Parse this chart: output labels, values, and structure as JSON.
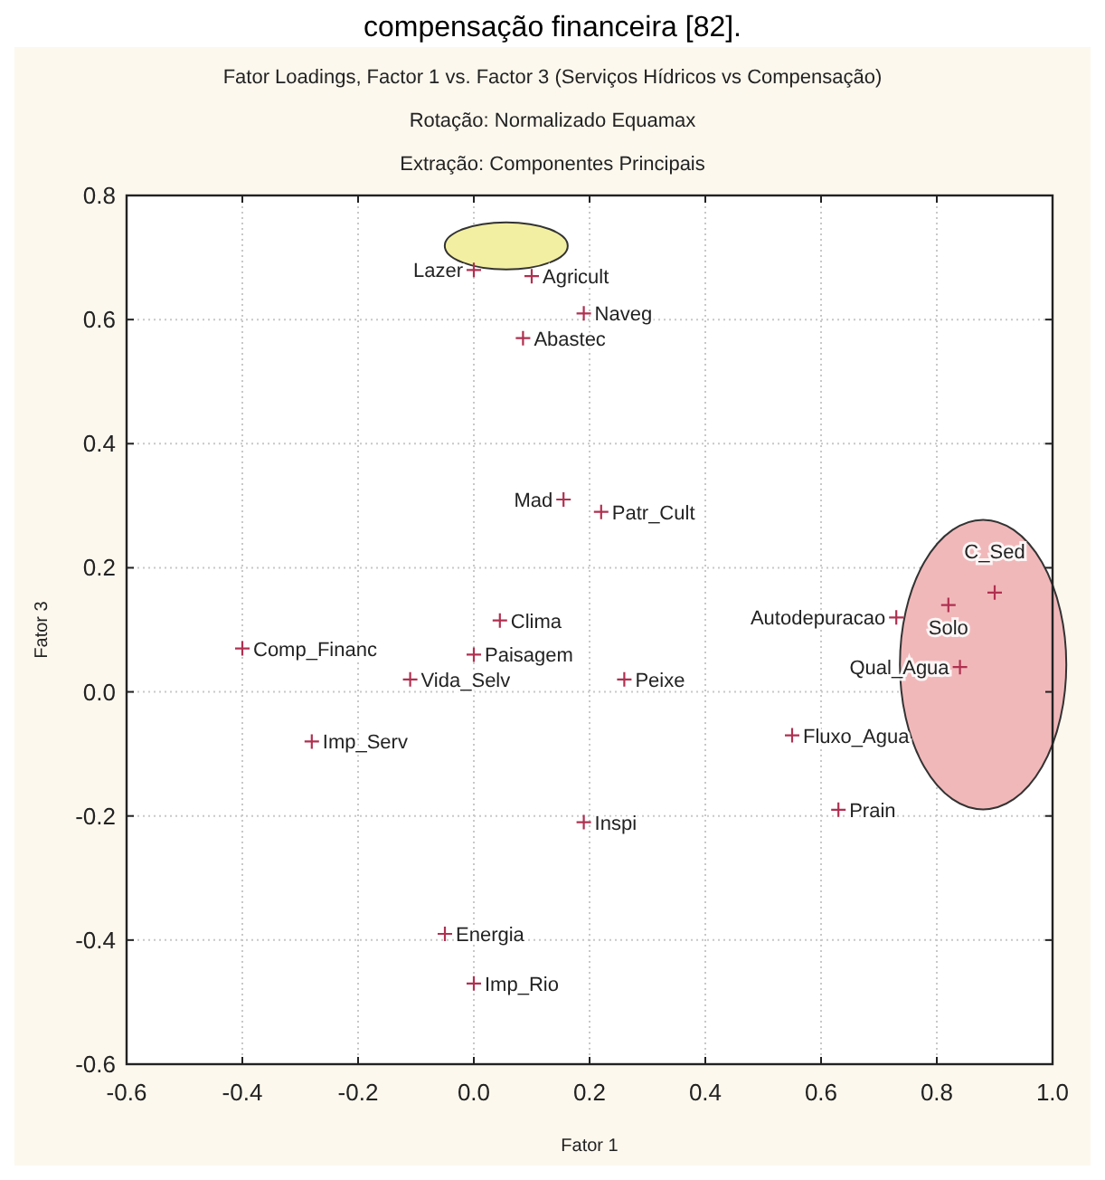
{
  "chart_data": {
    "type": "scatter",
    "title": "Fator Loadings, Factor 1 vs. Factor 3 (Serviços Hídricos vs Compensação)",
    "subtitle": "Rotação: Normalizado Equamax\nExtração: Componentes Principais",
    "xlabel": "Fator 1",
    "ylabel": "Fator 3",
    "xlim": [
      -0.6,
      1.0
    ],
    "ylim": [
      -0.6,
      0.8
    ],
    "xticks": [
      {
        "value": -0.6,
        "label": "-0.6"
      },
      {
        "value": -0.4,
        "label": "-0.4"
      },
      {
        "value": -0.2,
        "label": "-0.2"
      },
      {
        "value": 0,
        "label": "0.0"
      },
      {
        "value": 0.2,
        "label": "0.2"
      },
      {
        "value": 0.4,
        "label": "0.4"
      },
      {
        "value": 0.6,
        "label": "0.6"
      },
      {
        "value": 0.8,
        "label": "0.8"
      },
      {
        "value": 1.0,
        "label": "1.0"
      }
    ],
    "yticks": [
      {
        "value": -0.6,
        "label": "-0.6"
      },
      {
        "value": -0.4,
        "label": "-0.4"
      },
      {
        "value": -0.2,
        "label": "-0.2"
      },
      {
        "value": 0,
        "label": "0.0"
      },
      {
        "value": 0.2,
        "label": "0.2"
      },
      {
        "value": 0.4,
        "label": "0.4"
      },
      {
        "value": 0.6,
        "label": "0.6"
      },
      {
        "value": 0.8,
        "label": "0.8"
      }
    ],
    "grid": true,
    "marker": "cross",
    "series": [
      {
        "color": "#b03050",
        "x": [
          0.0,
          0.1,
          0.19,
          0.085,
          0.155,
          0.22,
          0.045,
          0.0,
          -0.11,
          -0.4,
          -0.28,
          0.26,
          0.19,
          -0.05,
          0.0,
          0.55,
          0.63,
          0.73,
          0.82,
          0.9,
          0.84
        ],
        "values": [
          0.68,
          0.67,
          0.61,
          0.57,
          0.31,
          0.29,
          0.115,
          0.06,
          0.02,
          0.07,
          -0.08,
          0.02,
          -0.21,
          -0.39,
          -0.47,
          -0.07,
          -0.19,
          0.12,
          0.14,
          0.16,
          0.04
        ]
      }
    ],
    "annotations": [
      "compensação financeira [82].",
      {
        "text": "Lazer",
        "x": 0.0,
        "y": 0.68
      },
      {
        "text": "Agricult",
        "x": 0.1,
        "y": 0.67
      },
      {
        "text": "Naveg",
        "x": 0.19,
        "y": 0.61
      },
      {
        "text": "Abastec",
        "x": 0.085,
        "y": 0.57
      },
      {
        "text": "Mad",
        "x": 0.155,
        "y": 0.31
      },
      {
        "text": "Patr_Cult",
        "x": 0.22,
        "y": 0.29
      },
      {
        "text": "Clima",
        "x": 0.045,
        "y": 0.115
      },
      {
        "text": "Paisagem",
        "x": 0.0,
        "y": 0.06
      },
      {
        "text": "Vida_Selv",
        "x": -0.11,
        "y": 0.02
      },
      {
        "text": "Comp_Financ",
        "x": -0.4,
        "y": 0.07
      },
      {
        "text": "Imp_Serv",
        "x": -0.28,
        "y": -0.08
      },
      {
        "text": "Peixe",
        "x": 0.26,
        "y": 0.02
      },
      {
        "text": "Inspi",
        "x": 0.19,
        "y": -0.21
      },
      {
        "text": "Energia",
        "x": -0.05,
        "y": -0.39
      },
      {
        "text": "Imp_Rio",
        "x": 0.0,
        "y": -0.47
      },
      {
        "text": "Fluxo_Agua",
        "x": 0.55,
        "y": -0.07
      },
      {
        "text": "Prain",
        "x": 0.63,
        "y": -0.19
      },
      {
        "text": "Autodepuracao",
        "x": 0.73,
        "y": 0.12
      },
      {
        "text": "Solo",
        "x": 0.82,
        "y": 0.14
      },
      {
        "text": "C_Sed",
        "x": 0.9,
        "y": 0.16
      },
      {
        "text": "Qual_Agua",
        "x": 0.84,
        "y": 0.04
      }
    ]
  }
}
